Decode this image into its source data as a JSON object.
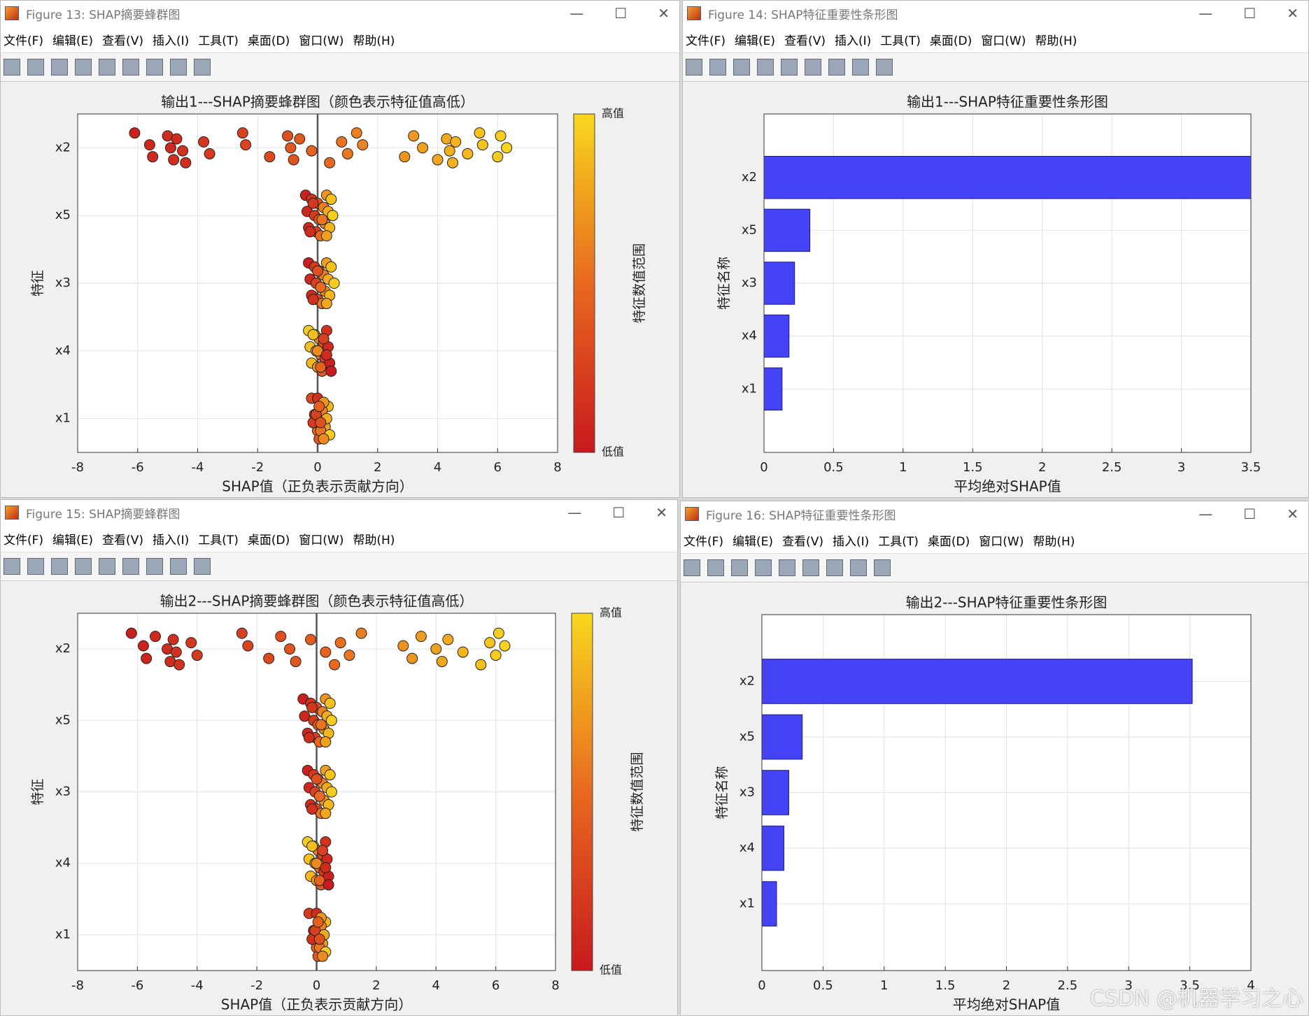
{
  "menu": [
    "文件(F)",
    "编辑(E)",
    "查看(V)",
    "插入(I)",
    "工具(T)",
    "桌面(D)",
    "窗口(W)",
    "帮助(H)"
  ],
  "windows": [
    {
      "title": "Figure 13: SHAP摘要蜂群图"
    },
    {
      "title": "Figure 14: SHAP特征重要性条形图"
    },
    {
      "title": "Figure 15: SHAP摘要蜂群图"
    },
    {
      "title": "Figure 16: SHAP特征重要性条形图"
    }
  ],
  "watermark": "CSDN @机器学习之心",
  "chart_data": [
    {
      "type": "beeswarm",
      "title": "输出1---SHAP摘要蜂群图（颜色表示特征值高低）",
      "xlabel": "SHAP值（正负表示贡献方向）",
      "ylabel": "特征",
      "colorbar_label": "特征数值范围",
      "categories": [
        "x1",
        "x4",
        "x3",
        "x5",
        "x2"
      ],
      "xlim": [
        -8,
        8
      ],
      "xticks": [
        -8,
        -6,
        -4,
        -2,
        0,
        2,
        4,
        6,
        8
      ],
      "grid": true,
      "colormap": [
        "#c8191e",
        "#e8691f",
        "#f8d71e"
      ],
      "clim": [
        0,
        1
      ],
      "cticks": [
        {
          "value": 0,
          "label": "低值"
        },
        {
          "value": 1,
          "label": "高值"
        }
      ],
      "groups": [
        {
          "shap": [
            -0.2,
            -0.1,
            0.0,
            0.1,
            0.2,
            0.3,
            0.35,
            -0.15,
            0.05,
            0.15,
            0.25,
            0.0,
            -0.05,
            0.1,
            0.2,
            0.3,
            0.4,
            0.05,
            0.1,
            0.2
          ],
          "feature": [
            0.3,
            0.1,
            0.5,
            0.7,
            0.8,
            0.9,
            0.85,
            0.2,
            0.4,
            0.6,
            0.75,
            0.15,
            0.25,
            0.55,
            0.7,
            0.8,
            0.95,
            0.45,
            0.35,
            0.65
          ]
        },
        {
          "shap": [
            -0.3,
            -0.25,
            -0.2,
            -0.1,
            -0.05,
            0.0,
            0.05,
            0.1,
            0.15,
            0.2,
            0.25,
            0.3,
            0.35,
            0.4,
            -0.15,
            0.0,
            0.1,
            0.2,
            0.3,
            0.45
          ],
          "feature": [
            0.95,
            0.9,
            0.85,
            0.8,
            0.75,
            0.7,
            0.6,
            0.5,
            0.4,
            0.3,
            0.2,
            0.15,
            0.1,
            0.05,
            0.88,
            0.65,
            0.45,
            0.25,
            0.12,
            0.02
          ]
        },
        {
          "shap": [
            -0.3,
            -0.25,
            -0.2,
            -0.1,
            -0.05,
            0.0,
            0.05,
            0.1,
            0.15,
            0.2,
            0.25,
            0.3,
            0.35,
            0.4,
            0.45,
            0.55,
            -0.15,
            0.0,
            0.1,
            0.3
          ],
          "feature": [
            0.05,
            0.1,
            0.12,
            0.2,
            0.25,
            0.3,
            0.4,
            0.45,
            0.55,
            0.6,
            0.7,
            0.75,
            0.8,
            0.85,
            0.9,
            0.95,
            0.15,
            0.35,
            0.5,
            0.78
          ]
        },
        {
          "shap": [
            -0.4,
            -0.35,
            -0.3,
            -0.2,
            -0.1,
            -0.05,
            0.0,
            0.05,
            0.1,
            0.2,
            0.25,
            0.3,
            0.35,
            0.4,
            0.45,
            0.5,
            -0.25,
            -0.15,
            0.15,
            0.3
          ],
          "feature": [
            0.05,
            0.08,
            0.1,
            0.15,
            0.2,
            0.25,
            0.35,
            0.4,
            0.5,
            0.6,
            0.65,
            0.7,
            0.8,
            0.85,
            0.9,
            0.95,
            0.12,
            0.18,
            0.55,
            0.75
          ]
        },
        {
          "shap": [
            -6.1,
            -5.6,
            -5.5,
            -5.0,
            -4.9,
            -4.8,
            -4.7,
            -4.5,
            -4.4,
            -3.8,
            -3.6,
            -2.5,
            -2.4,
            -1.6,
            -1.0,
            -0.9,
            -0.8,
            -0.6,
            -0.2,
            0.4,
            0.8,
            1.0,
            1.3,
            1.5,
            2.9,
            3.2,
            3.5,
            4.0,
            4.3,
            4.4,
            4.5,
            4.6,
            5.0,
            5.4,
            5.5,
            6.0,
            6.1,
            6.3
          ],
          "feature": [
            0.05,
            0.08,
            0.1,
            0.12,
            0.1,
            0.14,
            0.12,
            0.15,
            0.13,
            0.18,
            0.2,
            0.25,
            0.27,
            0.3,
            0.35,
            0.38,
            0.36,
            0.4,
            0.45,
            0.5,
            0.55,
            0.57,
            0.6,
            0.62,
            0.7,
            0.72,
            0.75,
            0.78,
            0.8,
            0.82,
            0.83,
            0.84,
            0.86,
            0.9,
            0.92,
            0.95,
            0.96,
            0.98
          ]
        }
      ]
    },
    {
      "type": "barh",
      "title": "输出1---SHAP特征重要性条形图",
      "xlabel": "平均绝对SHAP值",
      "ylabel": "特征名称",
      "color": "#3a3af5",
      "categories": [
        "x1",
        "x4",
        "x3",
        "x5",
        "x2"
      ],
      "values": [
        0.13,
        0.18,
        0.22,
        0.33,
        3.5
      ],
      "xlim": [
        0,
        3.5
      ],
      "xticks": [
        0,
        0.5,
        1,
        1.5,
        2,
        2.5,
        3,
        3.5
      ],
      "grid": true
    },
    {
      "type": "beeswarm",
      "title": "输出2---SHAP摘要蜂群图（颜色表示特征值高低）",
      "xlabel": "SHAP值（正负表示贡献方向）",
      "ylabel": "特征",
      "colorbar_label": "特征数值范围",
      "categories": [
        "x1",
        "x4",
        "x3",
        "x5",
        "x2"
      ],
      "xlim": [
        -8,
        8
      ],
      "xticks": [
        -8,
        -6,
        -4,
        -2,
        0,
        2,
        4,
        6,
        8
      ],
      "grid": true,
      "colormap": [
        "#c8191e",
        "#e8691f",
        "#f8d71e"
      ],
      "clim": [
        0,
        1
      ],
      "cticks": [
        {
          "value": 0,
          "label": "低值"
        },
        {
          "value": 1,
          "label": "高值"
        }
      ],
      "groups": [
        {
          "shap": [
            -0.25,
            -0.1,
            0.0,
            0.1,
            0.2,
            0.25,
            0.3,
            -0.15,
            0.05,
            0.15,
            0.2,
            0.0,
            -0.05,
            0.1,
            0.15,
            0.25,
            0.3,
            0.05,
            0.1,
            0.2
          ],
          "feature": [
            0.2,
            0.1,
            0.45,
            0.7,
            0.8,
            0.9,
            0.85,
            0.15,
            0.4,
            0.6,
            0.75,
            0.12,
            0.25,
            0.55,
            0.7,
            0.8,
            0.95,
            0.45,
            0.35,
            0.65
          ]
        },
        {
          "shap": [
            -0.3,
            -0.25,
            -0.2,
            -0.1,
            -0.05,
            0.0,
            0.05,
            0.1,
            0.15,
            0.2,
            0.25,
            0.3,
            0.35,
            0.4,
            -0.15,
            0.0,
            0.1,
            0.2,
            0.3,
            0.4
          ],
          "feature": [
            0.95,
            0.9,
            0.85,
            0.8,
            0.75,
            0.7,
            0.6,
            0.5,
            0.4,
            0.3,
            0.2,
            0.15,
            0.1,
            0.05,
            0.88,
            0.65,
            0.45,
            0.25,
            0.12,
            0.02
          ]
        },
        {
          "shap": [
            -0.3,
            -0.25,
            -0.2,
            -0.1,
            -0.05,
            0.0,
            0.05,
            0.1,
            0.15,
            0.2,
            0.25,
            0.3,
            0.35,
            0.4,
            0.45,
            0.5,
            -0.15,
            0.0,
            0.1,
            0.3
          ],
          "feature": [
            0.05,
            0.1,
            0.12,
            0.2,
            0.25,
            0.3,
            0.4,
            0.45,
            0.55,
            0.6,
            0.7,
            0.75,
            0.8,
            0.85,
            0.9,
            0.95,
            0.15,
            0.35,
            0.5,
            0.78
          ]
        },
        {
          "shap": [
            -0.45,
            -0.4,
            -0.3,
            -0.2,
            -0.1,
            -0.05,
            0.0,
            0.05,
            0.1,
            0.2,
            0.25,
            0.3,
            0.35,
            0.4,
            0.45,
            0.5,
            -0.25,
            -0.15,
            0.15,
            0.3
          ],
          "feature": [
            0.05,
            0.08,
            0.1,
            0.15,
            0.2,
            0.25,
            0.35,
            0.4,
            0.5,
            0.6,
            0.65,
            0.7,
            0.8,
            0.85,
            0.9,
            0.95,
            0.12,
            0.18,
            0.55,
            0.75
          ]
        },
        {
          "shap": [
            -6.2,
            -5.8,
            -5.7,
            -5.4,
            -5.0,
            -4.9,
            -4.8,
            -4.7,
            -4.6,
            -4.2,
            -4.0,
            -2.5,
            -2.3,
            -1.6,
            -1.2,
            -0.9,
            -0.7,
            -0.2,
            0.3,
            0.6,
            0.8,
            1.1,
            1.5,
            2.9,
            3.2,
            3.5,
            4.0,
            4.2,
            4.4,
            4.9,
            5.5,
            5.8,
            6.0,
            6.1,
            6.3
          ],
          "feature": [
            0.03,
            0.06,
            0.08,
            0.1,
            0.12,
            0.13,
            0.14,
            0.15,
            0.16,
            0.18,
            0.2,
            0.25,
            0.27,
            0.3,
            0.33,
            0.36,
            0.38,
            0.42,
            0.47,
            0.5,
            0.53,
            0.56,
            0.6,
            0.68,
            0.7,
            0.73,
            0.76,
            0.78,
            0.8,
            0.84,
            0.9,
            0.92,
            0.94,
            0.96,
            0.98
          ]
        }
      ]
    },
    {
      "type": "barh",
      "title": "输出2---SHAP特征重要性条形图",
      "xlabel": "平均绝对SHAP值",
      "ylabel": "特征名称",
      "color": "#3a3af5",
      "categories": [
        "x1",
        "x4",
        "x3",
        "x5",
        "x2"
      ],
      "values": [
        0.12,
        0.18,
        0.22,
        0.33,
        3.52
      ],
      "xlim": [
        0,
        4
      ],
      "xticks": [
        0,
        0.5,
        1,
        1.5,
        2,
        2.5,
        3,
        3.5,
        4
      ],
      "grid": true
    }
  ]
}
